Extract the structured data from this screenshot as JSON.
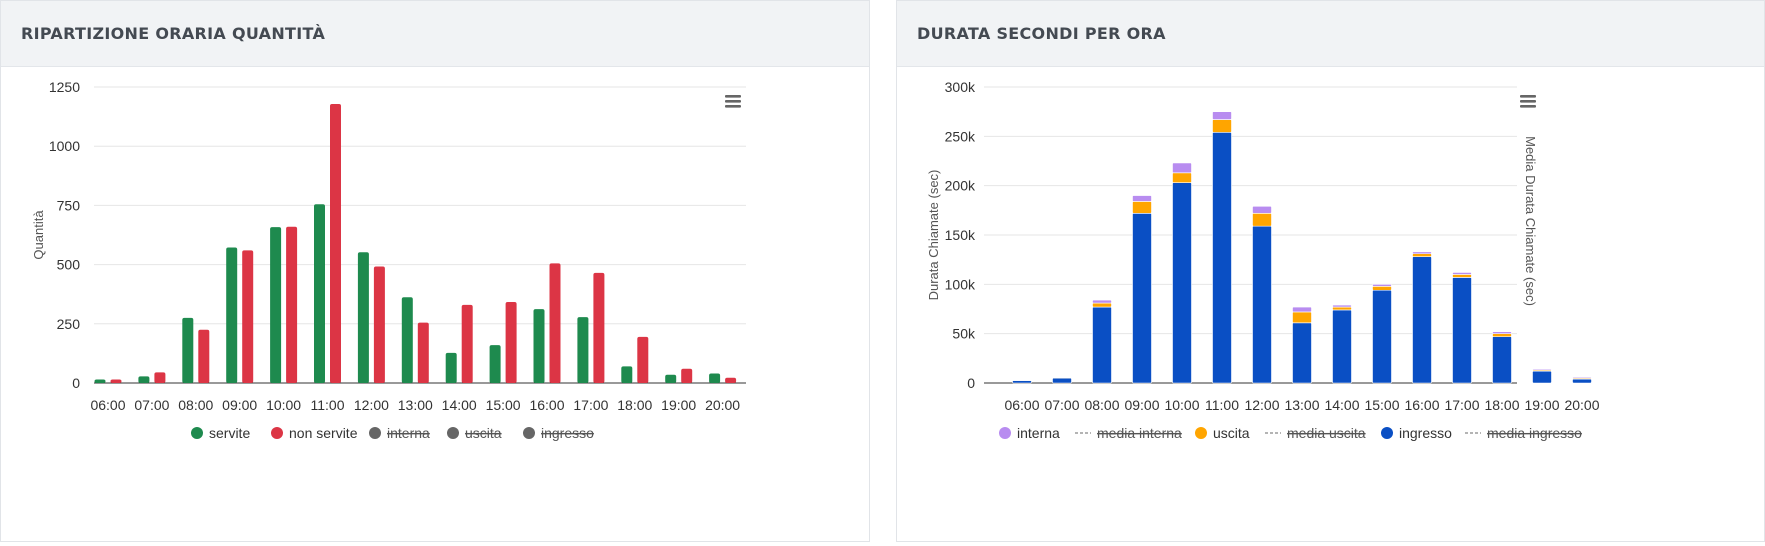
{
  "panels": [
    {
      "title": "RIPARTIZIONE ORARIA QUANTITÀ",
      "icon": "hamburger-menu-icon"
    },
    {
      "title": "DURATA SECONDI PER ORA",
      "icon": "hamburger-menu-icon"
    }
  ],
  "chart_data": [
    {
      "type": "bar",
      "title": "RIPARTIZIONE ORARIA QUANTITÀ",
      "ylabel": "Quantità",
      "ylim": [
        0,
        1250
      ],
      "yticks": [
        "0",
        "250",
        "500",
        "750",
        "1000",
        "1250"
      ],
      "categories": [
        "06:00",
        "07:00",
        "08:00",
        "09:00",
        "10:00",
        "11:00",
        "12:00",
        "13:00",
        "14:00",
        "15:00",
        "16:00",
        "17:00",
        "18:00",
        "19:00",
        "20:00"
      ],
      "series": [
        {
          "name": "servite",
          "color": "#1e8a4e",
          "visible": true,
          "values": [
            15,
            28,
            275,
            572,
            658,
            755,
            552,
            362,
            127,
            160,
            312,
            278,
            70,
            35,
            40
          ]
        },
        {
          "name": "non servite",
          "color": "#dc3545",
          "visible": true,
          "values": [
            15,
            45,
            225,
            560,
            660,
            1178,
            492,
            255,
            330,
            342,
            505,
            465,
            195,
            60,
            22
          ]
        }
      ],
      "legend": [
        {
          "label": "servite",
          "color": "#1e8a4e",
          "visible": true
        },
        {
          "label": "non servite",
          "color": "#dc3545",
          "visible": true
        },
        {
          "label": "interna",
          "color": "#666666",
          "visible": false
        },
        {
          "label": "uscita",
          "color": "#666666",
          "visible": false
        },
        {
          "label": "ingresso",
          "color": "#666666",
          "visible": false
        }
      ],
      "legend_position": "bottom",
      "grid": true
    },
    {
      "type": "bar",
      "stacked": true,
      "title": "DURATA SECONDI PER ORA",
      "ylabel": "Durata Chiamate (sec)",
      "y2label": "Media Durata Chiamate (sec)",
      "ylim": [
        0,
        300000
      ],
      "yticks": [
        "0",
        "50k",
        "100k",
        "150k",
        "200k",
        "250k",
        "300k"
      ],
      "categories": [
        "06:00",
        "07:00",
        "08:00",
        "09:00",
        "10:00",
        "11:00",
        "12:00",
        "13:00",
        "14:00",
        "15:00",
        "16:00",
        "17:00",
        "18:00",
        "19:00",
        "20:00"
      ],
      "extra_partial_bar": {
        "ingresso": 3500,
        "uscita": 500,
        "interna": 0
      },
      "series": [
        {
          "name": "ingresso",
          "color": "#0a4fc4",
          "values": [
            2500,
            5000,
            77000,
            172000,
            203000,
            254000,
            159000,
            61000,
            74000,
            94000,
            128000,
            107000,
            47000,
            12000,
            4000
          ]
        },
        {
          "name": "uscita",
          "color": "#ffa500",
          "values": [
            500,
            500,
            4000,
            12000,
            10000,
            13000,
            13000,
            11000,
            3000,
            4000,
            3000,
            3000,
            3000,
            1000,
            1000
          ]
        },
        {
          "name": "interna",
          "color": "#b88cf0",
          "values": [
            0,
            0,
            3000,
            6000,
            10000,
            8000,
            7000,
            5000,
            2000,
            2000,
            2000,
            2000,
            2000,
            1000,
            1000
          ]
        }
      ],
      "legend": [
        {
          "label": "interna",
          "type": "marker",
          "color": "#b88cf0",
          "visible": true
        },
        {
          "label": "media interna",
          "type": "line",
          "color": "#888888",
          "visible": false
        },
        {
          "label": "uscita",
          "type": "marker",
          "color": "#ffa500",
          "visible": true
        },
        {
          "label": "media uscita",
          "type": "line",
          "color": "#888888",
          "visible": false
        },
        {
          "label": "ingresso",
          "type": "marker",
          "color": "#0a4fc4",
          "visible": true
        },
        {
          "label": "media ingresso",
          "type": "line",
          "color": "#888888",
          "visible": false
        }
      ],
      "legend_position": "bottom",
      "grid": true
    }
  ]
}
